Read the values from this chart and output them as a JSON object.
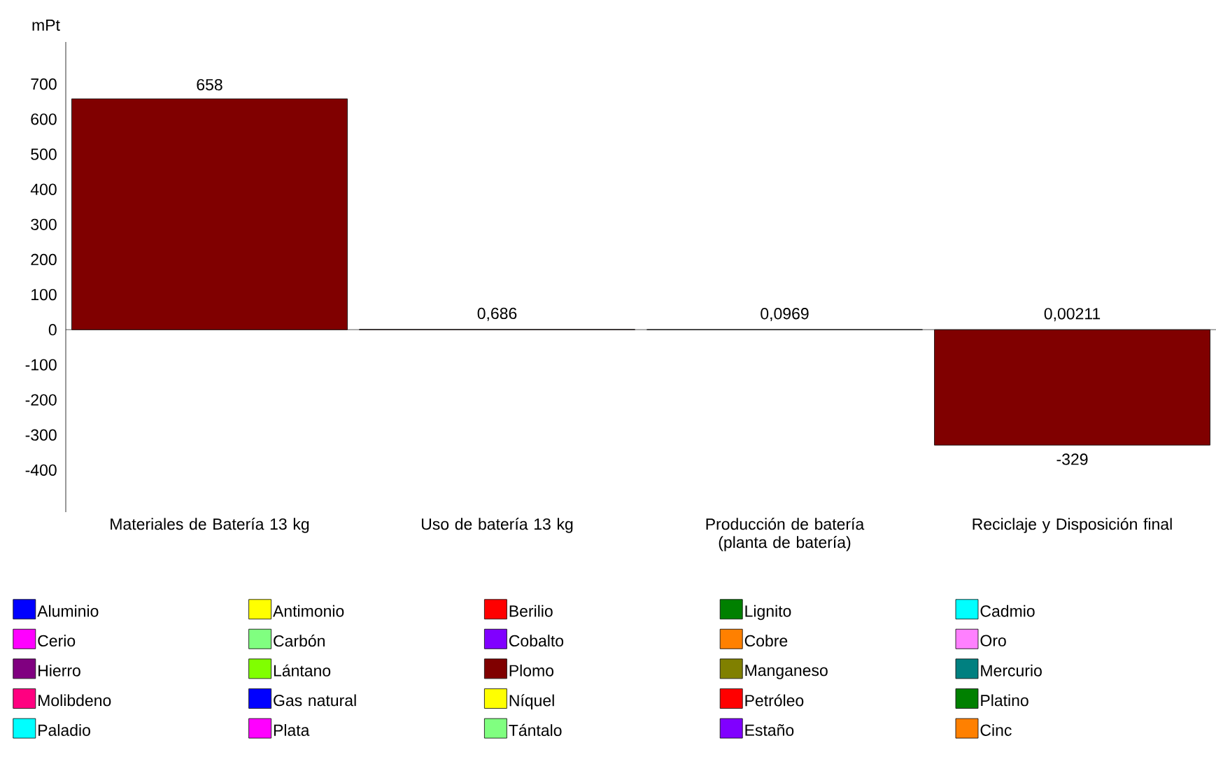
{
  "chart_data": {
    "type": "bar",
    "stacked": true,
    "ylabel": "mPt",
    "categories": [
      "Materiales de Batería 13 kg",
      "Uso de batería 13 kg",
      "Producción de batería (planta de batería)",
      "Reciclaje y Disposición final"
    ],
    "ylim": [
      -520,
      820
    ],
    "yticks": [
      -400,
      -300,
      -200,
      -100,
      0,
      100,
      200,
      300,
      400,
      500,
      600,
      700
    ],
    "legend": "bottom",
    "series": [
      {
        "name": "Aluminio",
        "color": "#0000ff",
        "values": [
          null,
          null,
          null,
          null
        ]
      },
      {
        "name": "Antimonio",
        "color": "#ffff00",
        "values": [
          null,
          null,
          null,
          null
        ]
      },
      {
        "name": "Berilio",
        "color": "#ff0000",
        "values": [
          null,
          null,
          null,
          null
        ]
      },
      {
        "name": "Lignito",
        "color": "#008000",
        "values": [
          null,
          null,
          null,
          null
        ]
      },
      {
        "name": "Cadmio",
        "color": "#00ffff",
        "values": [
          null,
          null,
          null,
          null
        ]
      },
      {
        "name": "Cerio",
        "color": "#ff00ff",
        "values": [
          null,
          null,
          null,
          null
        ]
      },
      {
        "name": "Carbón",
        "color": "#80ff80",
        "values": [
          null,
          null,
          null,
          null
        ]
      },
      {
        "name": "Cobalto",
        "color": "#8000ff",
        "values": [
          null,
          null,
          null,
          null
        ]
      },
      {
        "name": "Cobre",
        "color": "#ff8000",
        "values": [
          null,
          null,
          null,
          null
        ]
      },
      {
        "name": "Oro",
        "color": "#ff80ff",
        "values": [
          null,
          null,
          null,
          null
        ]
      },
      {
        "name": "Hierro",
        "color": "#800080",
        "values": [
          null,
          null,
          null,
          null
        ]
      },
      {
        "name": "Lántano",
        "color": "#80ff00",
        "values": [
          null,
          null,
          null,
          null
        ]
      },
      {
        "name": "Plomo",
        "color": "#800000",
        "values": [
          658,
          0.686,
          0.0969,
          -329
        ],
        "value_labels": [
          "658",
          "0,686",
          "0,0969",
          "-329"
        ]
      },
      {
        "name": "Manganeso",
        "color": "#808000",
        "values": [
          null,
          null,
          null,
          null
        ]
      },
      {
        "name": "Mercurio",
        "color": "#008080",
        "values": [
          null,
          null,
          null,
          null
        ]
      },
      {
        "name": "Molibdeno",
        "color": "#ff0080",
        "values": [
          null,
          null,
          null,
          null
        ]
      },
      {
        "name": "Gas natural",
        "color": "#0000ff",
        "values": [
          null,
          null,
          null,
          null
        ]
      },
      {
        "name": "Níquel",
        "color": "#ffff00",
        "values": [
          null,
          null,
          null,
          null
        ]
      },
      {
        "name": "Petróleo",
        "color": "#ff0000",
        "values": [
          null,
          null,
          null,
          null
        ]
      },
      {
        "name": "Platino",
        "color": "#008000",
        "values": [
          null,
          null,
          null,
          null
        ]
      },
      {
        "name": "Paladio",
        "color": "#00ffff",
        "values": [
          null,
          null,
          null,
          null
        ]
      },
      {
        "name": "Plata",
        "color": "#ff00ff",
        "values": [
          null,
          null,
          null,
          null
        ]
      },
      {
        "name": "Tántalo",
        "color": "#80ff80",
        "values": [
          null,
          null,
          null,
          null
        ]
      },
      {
        "name": "Estaño",
        "color": "#8000ff",
        "values": [
          null,
          null,
          null,
          null
        ]
      },
      {
        "name": "Cinc",
        "color": "#ff8000",
        "values": [
          null,
          null,
          null,
          null
        ]
      }
    ],
    "annotations": [
      {
        "text": "0,00211",
        "x": "Reciclaje y Disposición final",
        "y": 0
      }
    ]
  }
}
